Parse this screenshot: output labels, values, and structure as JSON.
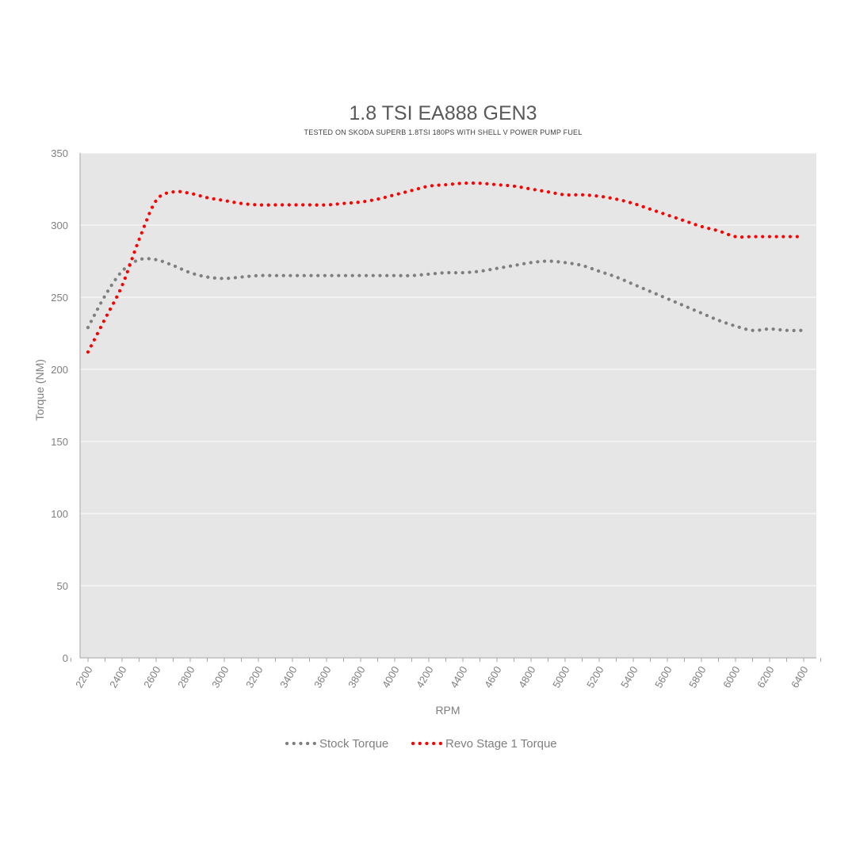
{
  "chart_data": {
    "type": "line",
    "title": "1.8 TSI EA888 GEN3",
    "subtitle": "TESTED ON SKODA SUPERB 1.8TSI 180PS WITH SHELL V POWER PUMP FUEL",
    "xlabel": "RPM",
    "ylabel": "Torque (NM)",
    "xlim": [
      2200,
      6400
    ],
    "ylim": [
      0,
      350
    ],
    "x_ticks": [
      "2200",
      "2400",
      "2600",
      "2800",
      "3000",
      "3200",
      "3400",
      "3600",
      "3800",
      "4000",
      "4200",
      "4400",
      "4600",
      "4800",
      "5000",
      "5200",
      "5400",
      "5600",
      "5800",
      "6000",
      "6200",
      "6400"
    ],
    "y_ticks": [
      "0",
      "50",
      "100",
      "150",
      "200",
      "250",
      "300",
      "350"
    ],
    "grid": true,
    "legend_position": "bottom",
    "x": [
      2200,
      2300,
      2400,
      2500,
      2600,
      2700,
      2800,
      2900,
      3000,
      3100,
      3200,
      3300,
      3400,
      3500,
      3600,
      3700,
      3800,
      3900,
      4000,
      4100,
      4200,
      4300,
      4400,
      4500,
      4600,
      4700,
      4800,
      4900,
      5000,
      5100,
      5200,
      5300,
      5400,
      5500,
      5600,
      5700,
      5800,
      5900,
      6000,
      6100,
      6200,
      6300,
      6400
    ],
    "series": [
      {
        "name": "Stock Torque",
        "color": "#7f7f7f",
        "values": [
          229,
          251,
          268,
          276,
          276,
          272,
          267,
          264,
          263,
          264,
          265,
          265,
          265,
          265,
          265,
          265,
          265,
          265,
          265,
          265,
          266,
          267,
          267,
          268,
          270,
          272,
          274,
          275,
          274,
          272,
          268,
          264,
          259,
          254,
          249,
          244,
          239,
          234,
          230,
          227,
          228,
          227,
          227
        ]
      },
      {
        "name": "Revo Stage 1 Torque",
        "color": "#ff0000",
        "values": [
          212,
          235,
          258,
          290,
          317,
          323,
          322,
          319,
          317,
          315,
          314,
          314,
          314,
          314,
          314,
          315,
          316,
          318,
          321,
          324,
          327,
          328,
          329,
          329,
          328,
          327,
          325,
          323,
          321,
          321,
          320,
          318,
          315,
          311,
          307,
          303,
          299,
          296,
          292,
          292,
          292,
          292,
          292
        ]
      }
    ]
  }
}
